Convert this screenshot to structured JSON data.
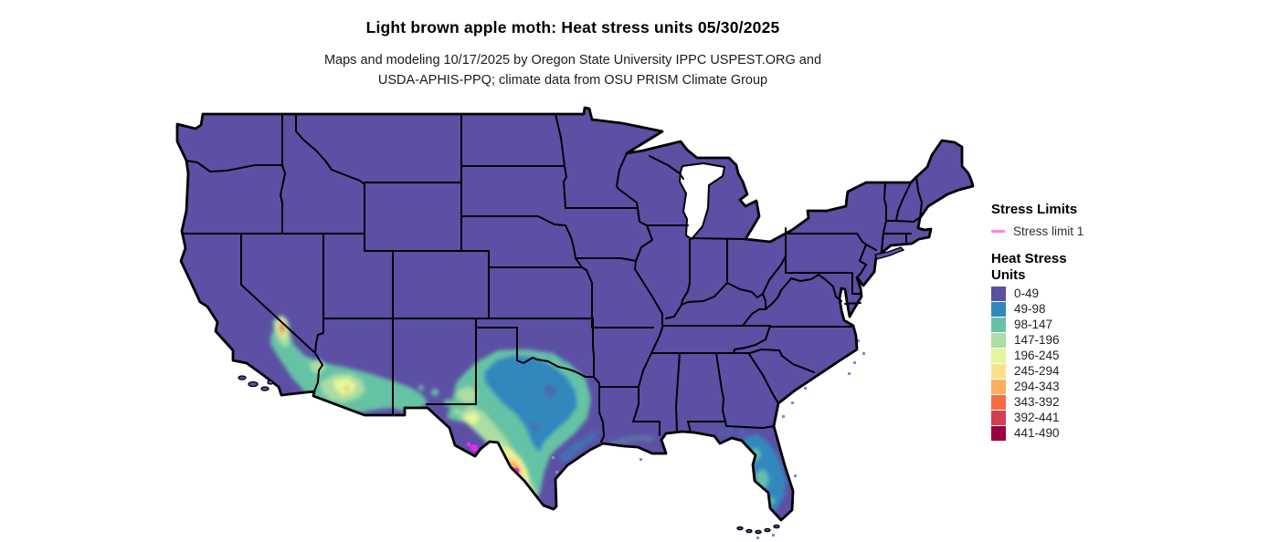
{
  "title": "Light brown apple moth: Heat stress units 05/30/2025",
  "subtitle_line1": "Maps and modeling 10/17/2025 by Oregon State University IPPC USPEST.ORG and",
  "subtitle_line2": "USDA-APHIS-PPQ; climate data from OSU PRISM Climate Group",
  "map": {
    "base_fill": "#5b50a4",
    "border_color": "#000000",
    "water_color": "#ffffff",
    "offshore_cell_color": "#8e86c6"
  },
  "legend": {
    "stress_limits_title": "Stress Limits",
    "stress_limit_label": "Stress limit 1",
    "stress_limit_color": "#ff7bf7",
    "stress_limit_map_color": "#f322f3",
    "heat_title_line1": "Heat Stress",
    "heat_title_line2": "Units",
    "classes": [
      {
        "label": "0-49",
        "color": "#5b50a4"
      },
      {
        "label": "49-98",
        "color": "#3288bd"
      },
      {
        "label": "98-147",
        "color": "#66c2a5"
      },
      {
        "label": "147-196",
        "color": "#abdda4"
      },
      {
        "label": "196-245",
        "color": "#e6f598"
      },
      {
        "label": "245-294",
        "color": "#fee08b"
      },
      {
        "label": "294-343",
        "color": "#fdae61"
      },
      {
        "label": "343-392",
        "color": "#f46d43"
      },
      {
        "label": "392-441",
        "color": "#d53e4f"
      },
      {
        "label": "441-490",
        "color": "#9e0142"
      }
    ]
  }
}
